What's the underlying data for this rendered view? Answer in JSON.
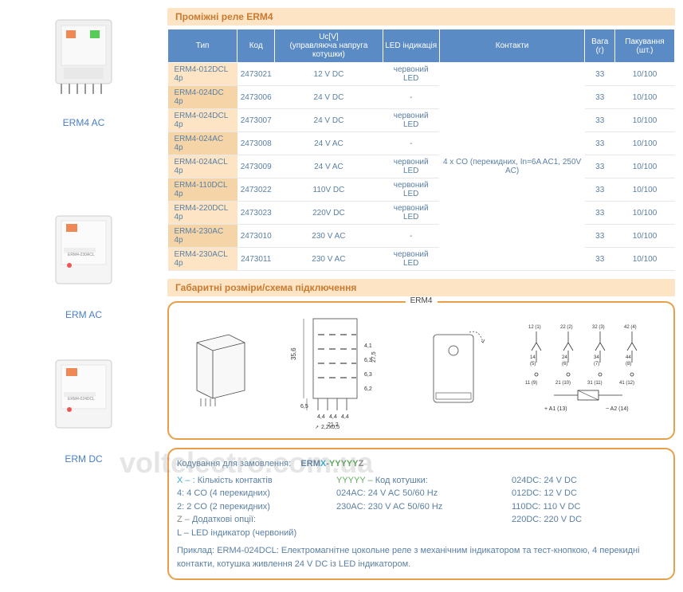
{
  "products": [
    {
      "label": "ERM4 AC"
    },
    {
      "label": "ERM AC"
    },
    {
      "label": "ERM DC"
    }
  ],
  "table": {
    "title": "Проміжні реле ERM4",
    "headers": [
      "Тип",
      "Код",
      "Uc[V]\n(управляюча напруга котушки)",
      "LED індикація",
      "Контакти",
      "Вага (г)",
      "Пакування (шт.)"
    ],
    "contact_merged": "4 x CO (перекидних, In=6A AC1, 250V AC)",
    "rows": [
      {
        "type": "ERM4-012DCL 4p",
        "code": "2473021",
        "uc": "12 V DC",
        "led": "червоний LED",
        "weight": "33",
        "pack": "10/100"
      },
      {
        "type": "ERM4-024DC 4p",
        "code": "2473006",
        "uc": "24 V DC",
        "led": "-",
        "weight": "33",
        "pack": "10/100"
      },
      {
        "type": "ERM4-024DCL 4p",
        "code": "2473007",
        "uc": "24 V DC",
        "led": "червоний LED",
        "weight": "33",
        "pack": "10/100"
      },
      {
        "type": "ERM4-024AC 4p",
        "code": "2473008",
        "uc": "24 V AC",
        "led": "-",
        "weight": "33",
        "pack": "10/100"
      },
      {
        "type": "ERM4-024ACL 4p",
        "code": "2473009",
        "uc": "24 V AC",
        "led": "червоний LED",
        "weight": "33",
        "pack": "10/100"
      },
      {
        "type": "ERM4-110DCL 4p",
        "code": "2473022",
        "uc": "110V DC",
        "led": "червоний LED",
        "weight": "33",
        "pack": "10/100"
      },
      {
        "type": "ERM4-220DCL 4p",
        "code": "2473023",
        "uc": "220V DC",
        "led": "червоний LED",
        "weight": "33",
        "pack": "10/100"
      },
      {
        "type": "ERM4-230AC 4p",
        "code": "2473010",
        "uc": "230 V AC",
        "led": "-",
        "weight": "33",
        "pack": "10/100"
      },
      {
        "type": "ERM4-230ACL 4p",
        "code": "2473011",
        "uc": "230 V AC",
        "led": "червоний LED",
        "weight": "33",
        "pack": "10/100"
      }
    ]
  },
  "dims": {
    "title": "Габаритні розміри/схема підключення",
    "label": "ERM4",
    "h": "35,6",
    "h2": "27,5",
    "h3": "6,5",
    "seg": [
      "6,2",
      "6,3",
      "6,3",
      "4,1"
    ],
    "w_seg": [
      "4,4",
      "4,4",
      "4,4"
    ],
    "w": "21,2",
    "foot": "2,2x0,5",
    "terminals": {
      "top": [
        "12 (1)",
        "22 (2)",
        "32 (3)",
        "42 (4)"
      ],
      "mid": [
        "14 (5)",
        "24 (6)",
        "34 (7)",
        "44 (8)"
      ],
      "bot": [
        "11 (9)",
        "21 (10)",
        "31 (11)",
        "41 (12)"
      ],
      "coil": [
        "+ A1 (13)",
        "~ A2 (14)"
      ]
    }
  },
  "ordering": {
    "header": "Кодування для замовлення:",
    "code_template": "ERM",
    "x_part": "X",
    "dash": "-",
    "y_part": "YYYYY",
    "z_part": "Z",
    "x_desc_label": "X – :",
    "x_desc": "Кількість контактів",
    "x_opts": [
      "4: 4 CO (4 перекидних)",
      "2: 2 CO (2 перекидних)"
    ],
    "z_desc_label": "Z –",
    "z_desc": "Додаткові опції:",
    "z_opt": "L – LED індикатор (червоний)",
    "y_desc_label": "YYYYY –",
    "y_desc_text": "Код котушки:",
    "y_opts_left": [
      "024AC: 24 V AC 50/60 Hz",
      "230AC: 230 V AC 50/60 Hz"
    ],
    "y_opts_right": [
      "024DC: 24 V DC",
      "012DC: 12 V DC",
      "110DC: 110 V DC",
      "220DC: 220 V DC"
    ],
    "example_label": "Приклад:",
    "example": "ERM4-024DCL: Електромагнітне цокольне реле з механічним індикатором та тест-кнопкою, 4 перекидні контакти, котушка живлення 24 V DC із LED індикатором."
  },
  "watermark": "voltelectro.com.ua"
}
